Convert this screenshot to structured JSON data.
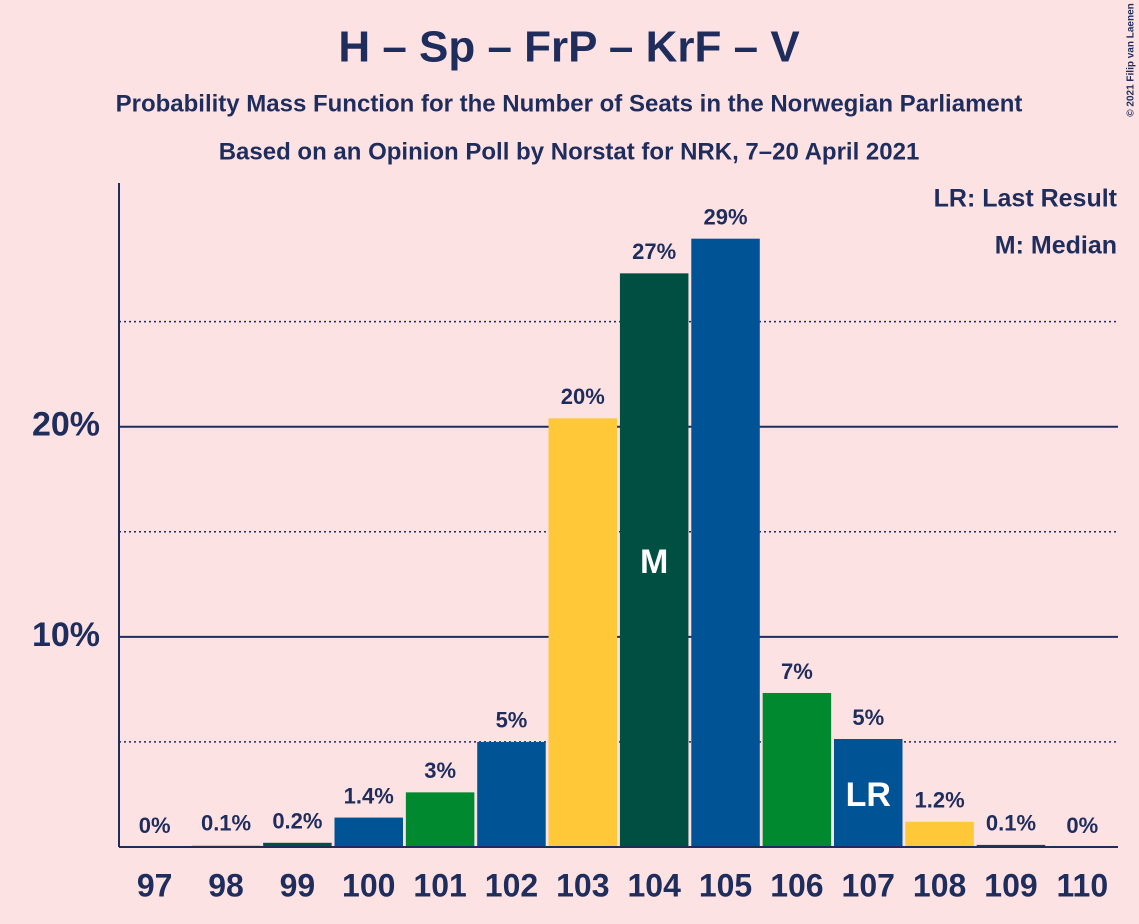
{
  "chart_data": {
    "type": "bar",
    "title": "H – Sp – FrP – KrF – V",
    "subtitle": "Probability Mass Function for the Number of Seats in the Norwegian Parliament",
    "subtitle2": "Based on an Opinion Poll by Norstat for NRK, 7–20 April 2021",
    "copyright": "© 2021 Filip van Laenen",
    "legend": [
      "LR: Last Result",
      "M: Median"
    ],
    "categories": [
      "97",
      "98",
      "99",
      "100",
      "101",
      "102",
      "103",
      "104",
      "105",
      "106",
      "107",
      "108",
      "109",
      "110"
    ],
    "values": [
      0,
      0.1,
      0.2,
      1.4,
      2.6,
      5.0,
      20.4,
      27.3,
      28.95,
      7.33,
      5.14,
      1.2,
      0.1,
      0
    ],
    "value_labels": [
      "0%",
      "0.1%",
      "0.2%",
      "1.4%",
      "3%",
      "5%",
      "20%",
      "27%",
      "29%",
      "7%",
      "5%",
      "1.2%",
      "0.1%",
      "0%"
    ],
    "colors": [
      "#ffc839",
      "#ffc839",
      "#004f43",
      "#005496",
      "#00892e",
      "#005496",
      "#ffc839",
      "#004f43",
      "#005496",
      "#00892e",
      "#005496",
      "#ffc839",
      "#004f43",
      "#005496"
    ],
    "markers": [
      {
        "index": 7,
        "label": "M"
      },
      {
        "index": 10,
        "label": "LR"
      }
    ],
    "ylim": [
      0,
      31.6
    ],
    "yticks": [
      {
        "value": 10,
        "label": "10%"
      },
      {
        "value": 20,
        "label": "20%"
      }
    ],
    "minor_yticks": [
      5,
      15,
      25
    ],
    "grid": true
  }
}
